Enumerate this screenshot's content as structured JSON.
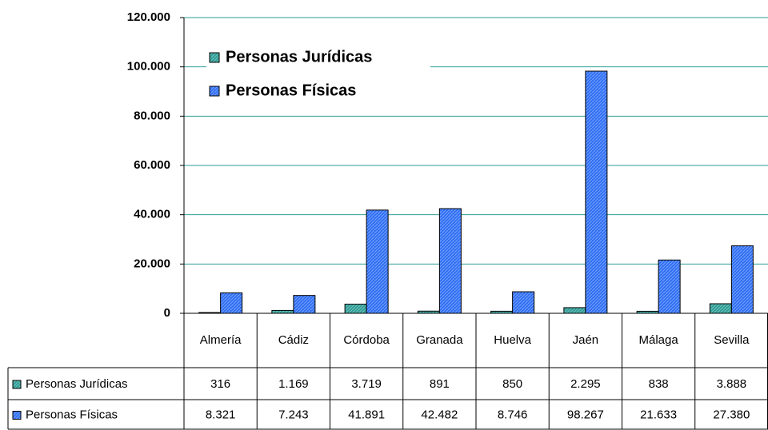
{
  "chart_data": {
    "type": "bar",
    "categories": [
      "Almería",
      "Cádiz",
      "Córdoba",
      "Granada",
      "Huelva",
      "Jaén",
      "Málaga",
      "Sevilla"
    ],
    "series": [
      {
        "name": "Personas Jurídicas",
        "color": "#2e9e96",
        "values": [
          316,
          1169,
          3719,
          891,
          850,
          2295,
          838,
          3888
        ],
        "value_labels": [
          "316",
          "1.169",
          "3.719",
          "891",
          "850",
          "2.295",
          "838",
          "3.888"
        ]
      },
      {
        "name": "Personas Físicas",
        "color": "#2f6ff5",
        "values": [
          8321,
          7243,
          41891,
          42482,
          8746,
          98267,
          21633,
          27380
        ],
        "value_labels": [
          "8.321",
          "7.243",
          "41.891",
          "42.482",
          "8.746",
          "98.267",
          "21.633",
          "27.380"
        ]
      }
    ],
    "ylim": [
      0,
      120000
    ],
    "yticks": [
      0,
      {
        "value": 20000,
        "label": "20.000"
      },
      {
        "value": 40000,
        "label": "40.000"
      },
      {
        "value": 60000,
        "label": "60.000"
      },
      {
        "value": 80000,
        "label": "80.000"
      },
      {
        "value": 100000,
        "label": "100.000"
      },
      {
        "value": 120000,
        "label": "120.000"
      }
    ],
    "grid": true,
    "legend": "upper left"
  }
}
